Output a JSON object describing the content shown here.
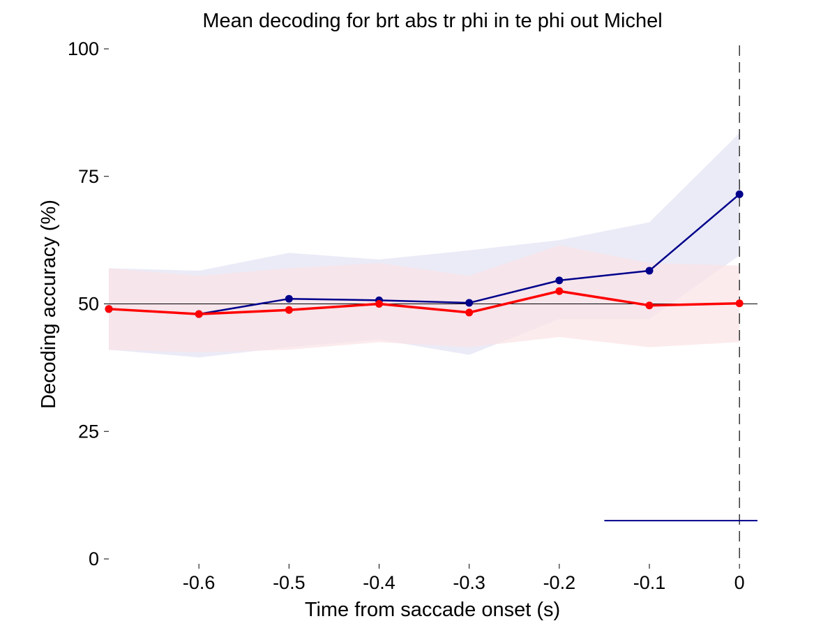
{
  "chart_data": {
    "type": "line",
    "title": "Mean decoding for brt abs tr phi in te phi out  Michel",
    "xlabel": "Time from saccade onset (s)",
    "ylabel": "Decoding accuracy (%)",
    "xlim": [
      -0.7,
      0.02
    ],
    "ylim": [
      0,
      100
    ],
    "xticks": [
      -0.6,
      -0.5,
      -0.4,
      -0.3,
      -0.2,
      -0.1,
      0
    ],
    "xtick_labels": [
      "-0.6",
      "-0.5",
      "-0.4",
      "-0.3",
      "-0.2",
      "-0.1",
      "0"
    ],
    "yticks": [
      0,
      25,
      50,
      75,
      100
    ],
    "ytick_labels": [
      "0",
      "25",
      "50",
      "75",
      "100"
    ],
    "grid": false,
    "x": [
      -0.7,
      -0.6,
      -0.5,
      -0.4,
      -0.3,
      -0.2,
      -0.1,
      0
    ],
    "series": [
      {
        "color": "#00008b",
        "band_color": "#e9e9f6",
        "values": [
          49,
          48,
          51,
          50.7,
          50.2,
          54.6,
          56.5,
          71.5
        ],
        "upper": [
          57,
          56.5,
          60,
          58.7,
          60.5,
          62.5,
          66,
          83.5
        ],
        "lower": [
          41,
          39.5,
          41.5,
          43,
          40,
          47,
          47,
          59.5
        ]
      },
      {
        "color": "#ff0000",
        "band_color": "#fbe3e6",
        "values": [
          49,
          48,
          48.8,
          50,
          48.3,
          52.5,
          49.7,
          50.1
        ],
        "upper": [
          57,
          55.5,
          57,
          58,
          55.5,
          61.5,
          58,
          57.5
        ],
        "lower": [
          41,
          40.5,
          41,
          42.5,
          41.5,
          43.5,
          41.5,
          42.5
        ]
      }
    ],
    "reference_lines": [
      {
        "orientation": "horizontal",
        "y": 50,
        "x_range": [
          -0.7,
          0.02
        ],
        "color": "#000000",
        "style": "solid"
      },
      {
        "orientation": "vertical",
        "x": 0,
        "color": "#000000",
        "style": "dashed"
      }
    ],
    "significance_bar": {
      "y": 7.5,
      "x_range": [
        -0.15,
        0.02
      ],
      "color": "#00008b"
    }
  }
}
